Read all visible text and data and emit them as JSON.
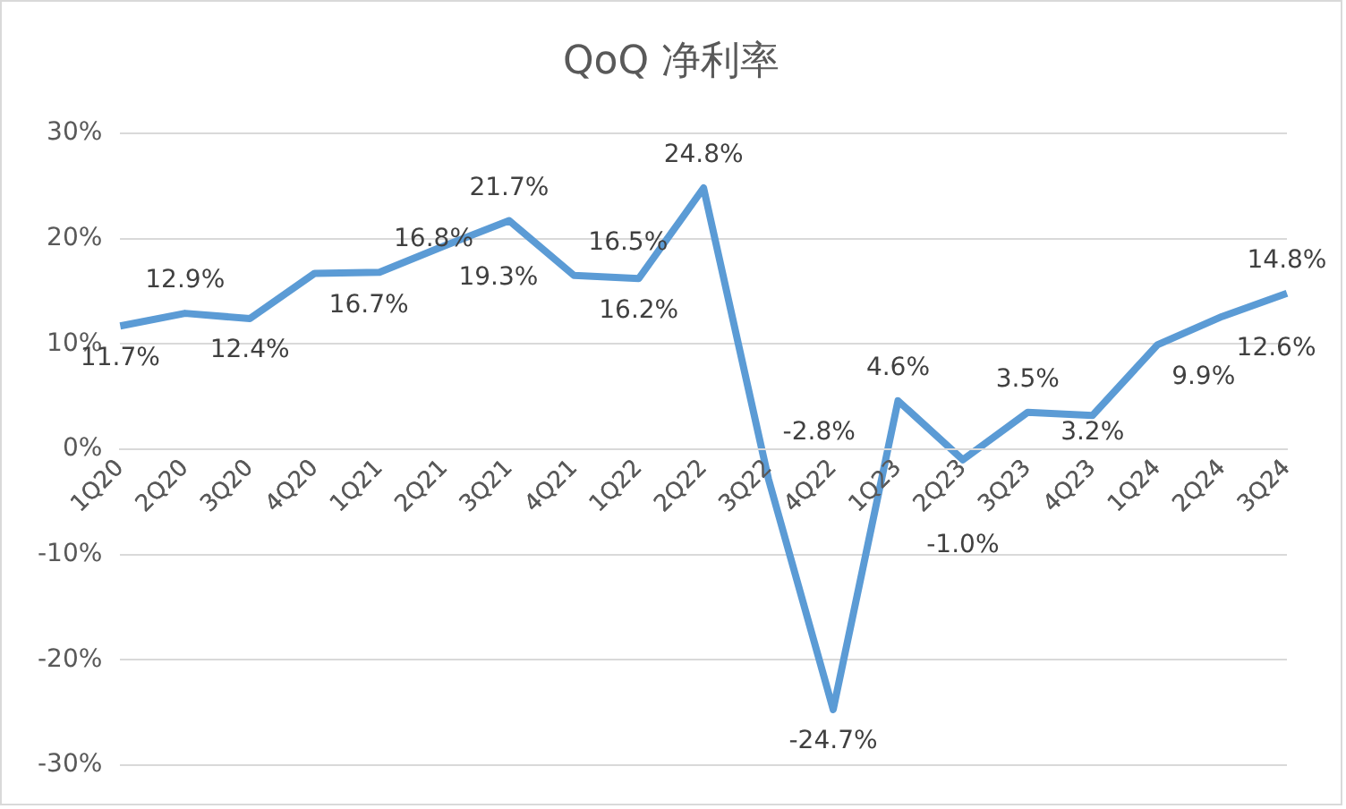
{
  "chart_data": {
    "type": "line",
    "title": "QoQ 净利率",
    "categories": [
      "1Q20",
      "2Q20",
      "3Q20",
      "4Q20",
      "1Q21",
      "2Q21",
      "3Q21",
      "4Q21",
      "1Q22",
      "2Q22",
      "3Q22",
      "4Q22",
      "1Q23",
      "2Q23",
      "3Q23",
      "4Q23",
      "1Q24",
      "2Q24",
      "3Q24"
    ],
    "series": [
      {
        "color": "#5b9bd5",
        "values": [
          11.7,
          12.9,
          12.4,
          16.7,
          16.8,
          19.3,
          21.7,
          16.5,
          16.2,
          24.8,
          -2.8,
          -24.7,
          4.6,
          -1.0,
          3.5,
          3.2,
          9.9,
          12.6,
          14.8
        ],
        "value_labels": [
          "11.7%",
          "12.9%",
          "12.4%",
          "16.7%",
          "16.8%",
          "19.3%",
          "21.7%",
          "16.5%",
          "16.2%",
          "24.8%",
          "-2.8%",
          "-24.7%",
          "4.6%",
          "-1.0%",
          "3.5%",
          "3.2%",
          "9.9%",
          "12.6%",
          "14.8%"
        ]
      }
    ],
    "ylim": [
      -30,
      30
    ],
    "yticks": [
      {
        "value": -30,
        "label": "-30%"
      },
      {
        "value": -20,
        "label": "-20%"
      },
      {
        "value": -10,
        "label": "-10%"
      },
      {
        "value": 0,
        "label": "0%"
      },
      {
        "value": 10,
        "label": "10%"
      },
      {
        "value": 20,
        "label": "20%"
      },
      {
        "value": 30,
        "label": "30%"
      }
    ],
    "grid": "y",
    "legend": false,
    "marker": "none",
    "line_style": "solid"
  }
}
